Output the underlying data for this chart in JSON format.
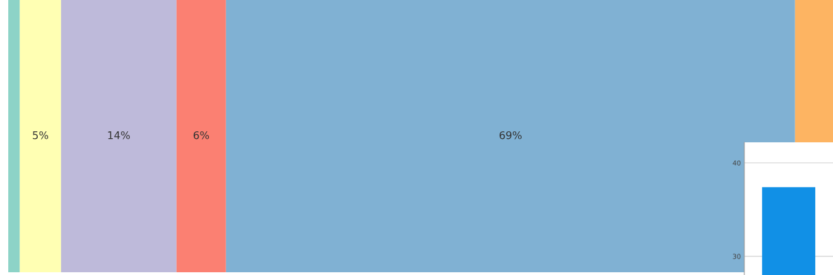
{
  "chart_data": [
    {
      "type": "bar",
      "orientation": "horizontal",
      "stacked": true,
      "categories": [
        null
      ],
      "xlim": [
        0,
        100
      ],
      "tick_labels": false,
      "grid": false,
      "series": [
        {
          "color": "#8dd3c7",
          "values": [
            1.4
          ],
          "value_labels": [
            null
          ]
        },
        {
          "color": "#ffffb3",
          "values": [
            5
          ],
          "value_labels": [
            "5%"
          ]
        },
        {
          "color": "#bebada",
          "values": [
            14
          ],
          "value_labels": [
            "14%"
          ]
        },
        {
          "color": "#fb8072",
          "values": [
            6
          ],
          "value_labels": [
            "6%"
          ]
        },
        {
          "color": "#80b1d3",
          "values": [
            69
          ],
          "value_labels": [
            "69%"
          ]
        },
        {
          "color": "#fdb462",
          "values": [
            4.6
          ],
          "value_labels": [
            null
          ]
        }
      ]
    },
    {
      "type": "bar",
      "categories": [
        null
      ],
      "values": [
        37.4
      ],
      "color": "#1190e6",
      "ylim": [
        28,
        42.2
      ],
      "yticks": [
        30,
        40
      ],
      "grid": "y",
      "tick_labels": "y"
    }
  ]
}
